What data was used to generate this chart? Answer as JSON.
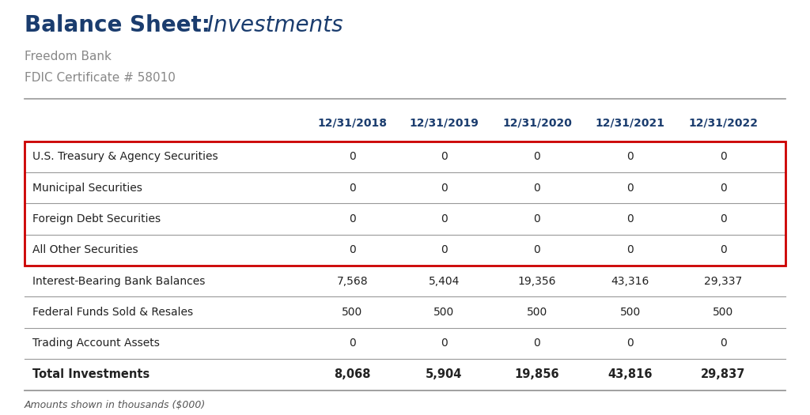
{
  "title_bold": "Balance Sheet:",
  "title_regular": " Investments",
  "subtitle1": "Freedom Bank",
  "subtitle2": "FDIC Certificate # 58010",
  "columns": [
    "12/31/2018",
    "12/31/2019",
    "12/31/2020",
    "12/31/2021",
    "12/31/2022"
  ],
  "rows": [
    {
      "label": "U.S. Treasury & Agency Securities",
      "values": [
        "0",
        "0",
        "0",
        "0",
        "0"
      ],
      "boxed": true,
      "bold": false
    },
    {
      "label": "Municipal Securities",
      "values": [
        "0",
        "0",
        "0",
        "0",
        "0"
      ],
      "boxed": true,
      "bold": false
    },
    {
      "label": "Foreign Debt Securities",
      "values": [
        "0",
        "0",
        "0",
        "0",
        "0"
      ],
      "boxed": true,
      "bold": false
    },
    {
      "label": "All Other Securities",
      "values": [
        "0",
        "0",
        "0",
        "0",
        "0"
      ],
      "boxed": true,
      "bold": false
    },
    {
      "label": "Interest-Bearing Bank Balances",
      "values": [
        "7,568",
        "5,404",
        "19,356",
        "43,316",
        "29,337"
      ],
      "boxed": false,
      "bold": false
    },
    {
      "label": "Federal Funds Sold & Resales",
      "values": [
        "500",
        "500",
        "500",
        "500",
        "500"
      ],
      "boxed": false,
      "bold": false
    },
    {
      "label": "Trading Account Assets",
      "values": [
        "0",
        "0",
        "0",
        "0",
        "0"
      ],
      "boxed": false,
      "bold": false
    },
    {
      "label": "Total Investments",
      "values": [
        "8,068",
        "5,904",
        "19,856",
        "43,816",
        "29,837"
      ],
      "boxed": false,
      "bold": true
    }
  ],
  "footer": "Amounts shown in thousands ($000)",
  "title_bold_color": "#1a3c6e",
  "title_regular_color": "#1a3c6e",
  "subtitle_color": "#888888",
  "header_color": "#1a3c6e",
  "box_color": "#cc0000",
  "background_color": "#ffffff",
  "separator_color": "#aaaaaa",
  "text_color": "#222222",
  "footer_color": "#555555"
}
